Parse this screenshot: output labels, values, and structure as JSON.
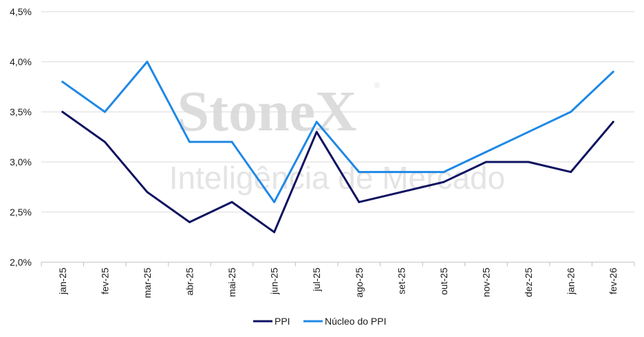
{
  "watermark": {
    "brand": "StoneX",
    "registered": "®",
    "tagline": "Inteligência de Mercado"
  },
  "chart_data": {
    "type": "line",
    "categories": [
      "jan-25",
      "fev-25",
      "mar-25",
      "abr-25",
      "mai-25",
      "jun-25",
      "jul-25",
      "ago-25",
      "set-25",
      "out-25",
      "nov-25",
      "dez-25",
      "jan-26",
      "fev-26"
    ],
    "y_ticks": [
      "2,0%",
      "2,5%",
      "3,0%",
      "3,5%",
      "4,0%",
      "4,5%"
    ],
    "y_tick_values": [
      2.0,
      2.5,
      3.0,
      3.5,
      4.0,
      4.5
    ],
    "ylim": [
      2.0,
      4.5
    ],
    "grid": true,
    "legend_position": "bottom-center",
    "series": [
      {
        "name": "PPI",
        "color": "#0d1160",
        "values": [
          3.5,
          3.2,
          2.7,
          2.4,
          2.6,
          2.3,
          3.3,
          2.6,
          2.7,
          2.8,
          3.0,
          3.0,
          2.9,
          3.4
        ]
      },
      {
        "name": "Núcleo do PPI",
        "color": "#1e88e5",
        "values": [
          3.8,
          3.5,
          4.0,
          3.2,
          3.2,
          2.6,
          3.4,
          2.9,
          2.9,
          2.9,
          3.1,
          3.3,
          3.5,
          3.9
        ]
      }
    ]
  }
}
